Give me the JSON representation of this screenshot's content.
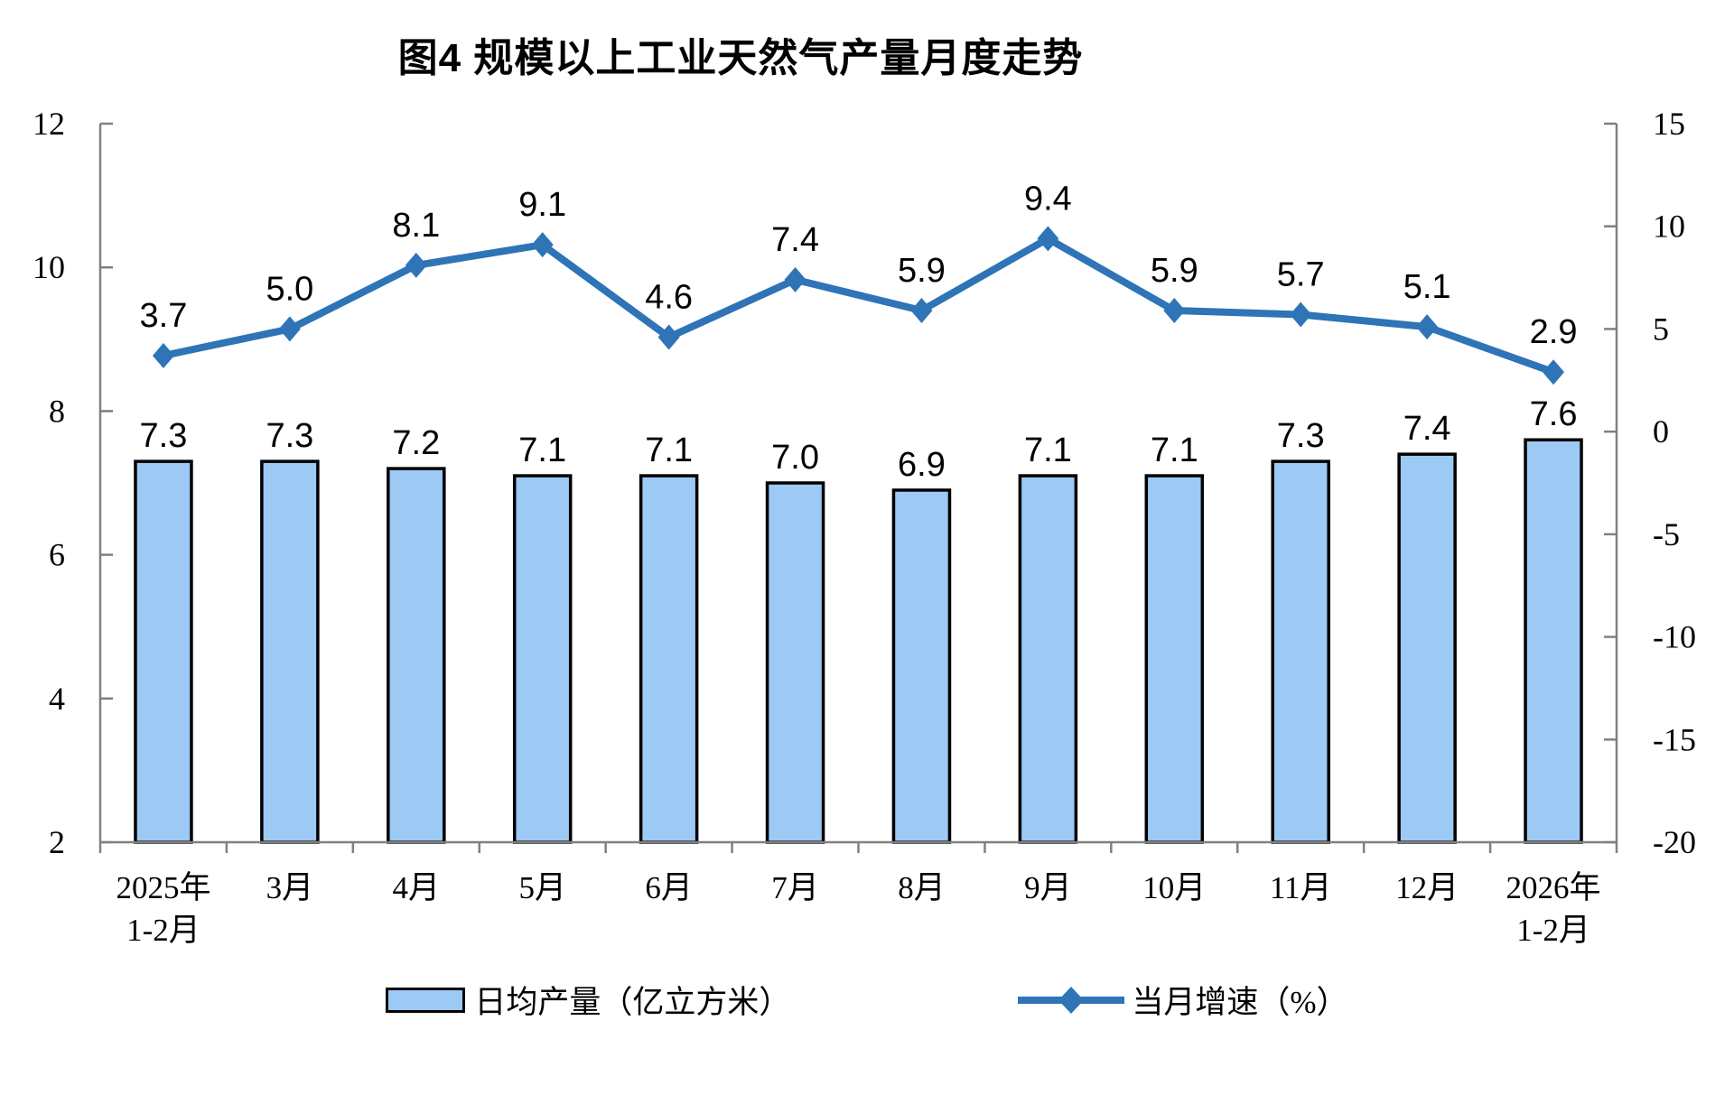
{
  "title": "图4 规模以上工业天然气产量月度走势",
  "legend": {
    "bar_label": "日均产量（亿立方米）",
    "line_label": "当月增速（%）"
  },
  "chart_data": {
    "type": "bar+line combo",
    "title": "图4 规模以上工业天然气产量月度走势",
    "categories": [
      "2025年\n1-2月",
      "3月",
      "4月",
      "5月",
      "6月",
      "7月",
      "8月",
      "9月",
      "10月",
      "11月",
      "12月",
      "2026年\n1-2月"
    ],
    "series": [
      {
        "name": "日均产量（亿立方米）",
        "type": "bar",
        "axis": "left",
        "values": [
          7.3,
          7.3,
          7.2,
          7.1,
          7.1,
          7.0,
          6.9,
          7.1,
          7.1,
          7.3,
          7.4,
          7.6
        ]
      },
      {
        "name": "当月增速（%）",
        "type": "line",
        "axis": "right",
        "values": [
          3.7,
          5.0,
          8.1,
          9.1,
          4.6,
          7.4,
          5.9,
          9.4,
          5.9,
          5.7,
          5.1,
          2.9
        ]
      }
    ],
    "left_axis": {
      "min": 2,
      "max": 12,
      "ticks": [
        12,
        10,
        8,
        6,
        4,
        2
      ]
    },
    "right_axis": {
      "min": -20,
      "max": 15,
      "ticks": [
        15,
        10,
        5,
        0,
        -5,
        -10,
        -15,
        -20
      ]
    },
    "grid": "off",
    "legend_position": "bottom",
    "colors": {
      "bar_fill": "#9DC9F5",
      "bar_border": "#000000",
      "line": "#2E74B6",
      "axis": "#808080",
      "text": "#000000"
    }
  }
}
